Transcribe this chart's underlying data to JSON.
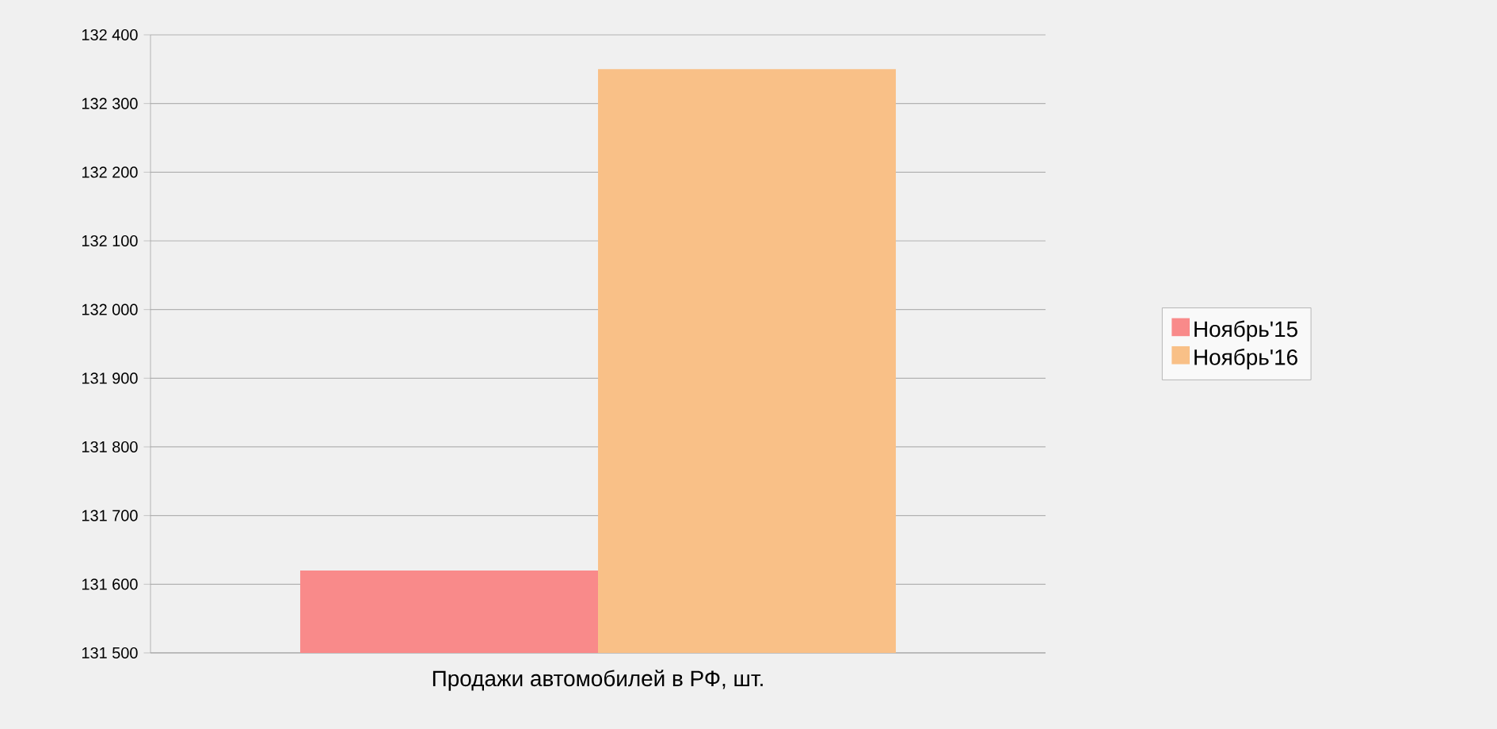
{
  "chart_data": {
    "type": "bar",
    "xlabel": "Продажи автомобилей в РФ, шт.",
    "categories": [
      null
    ],
    "series": [
      {
        "name": "Ноябрь'15",
        "color": "#f98a8a",
        "values": [
          131620
        ]
      },
      {
        "name": "Ноябрь'16",
        "color": "#f9c087",
        "values": [
          132350
        ]
      }
    ],
    "ylim": [
      131500,
      132400
    ],
    "yticks": [
      {
        "value": 131500,
        "label": "131 500"
      },
      {
        "value": 131600,
        "label": "131 600"
      },
      {
        "value": 131700,
        "label": "131 700"
      },
      {
        "value": 131800,
        "label": "131 800"
      },
      {
        "value": 131900,
        "label": "131 900"
      },
      {
        "value": 132000,
        "label": "132 000"
      },
      {
        "value": 132100,
        "label": "132 100"
      },
      {
        "value": 132200,
        "label": "132 200"
      },
      {
        "value": 132300,
        "label": "132 300"
      },
      {
        "value": 132400,
        "label": "132 400"
      }
    ],
    "grid": "y",
    "legend": "right"
  }
}
